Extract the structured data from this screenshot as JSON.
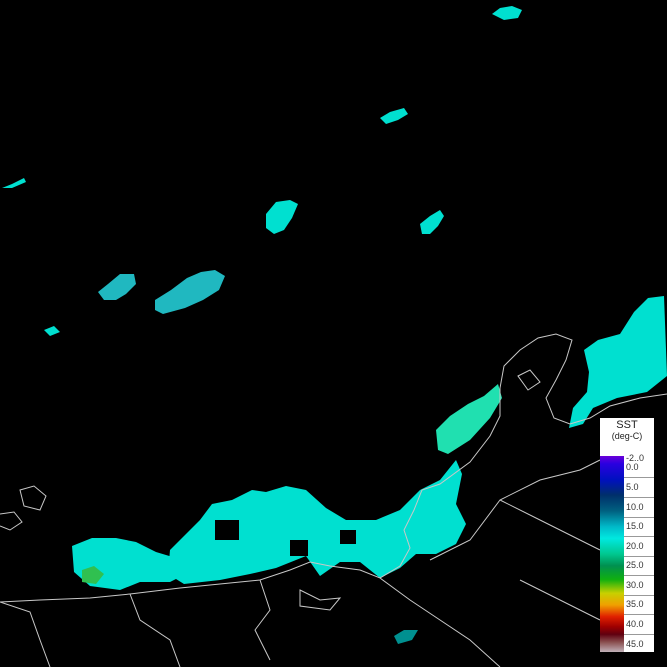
{
  "legend": {
    "title": "SST",
    "unit": "(deg-C)",
    "labels": [
      "-2..0",
      "0.0",
      "5.0",
      "10.0",
      "15.0",
      "20.0",
      "25.0",
      "30.0",
      "35.0",
      "40.0",
      "45.0"
    ],
    "colormap": [
      "#6a00d8",
      "#0010c0",
      "#00306a",
      "#006080",
      "#00e8e0",
      "#009050",
      "#10b010",
      "#c8d000",
      "#f0a000",
      "#e02000",
      "#600010",
      "#c0b0b8"
    ]
  },
  "colors": {
    "background": "#000000",
    "coastline": "#c8c8c8",
    "sst_dominant": "#00e0d0"
  }
}
